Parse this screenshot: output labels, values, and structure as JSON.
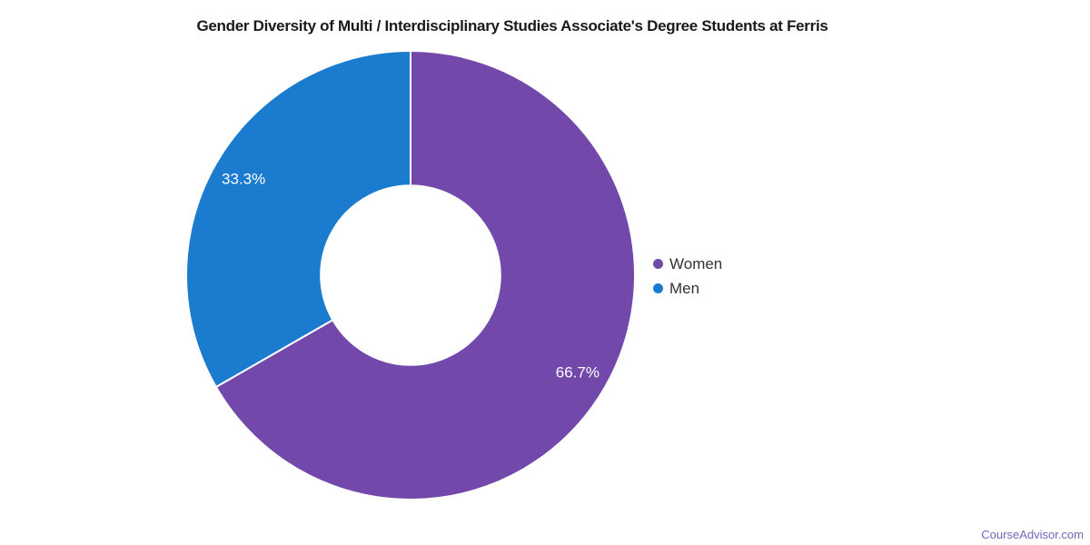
{
  "title": "Gender Diversity of Multi / Interdisciplinary Studies Associate's Degree Students at Ferris",
  "watermark": {
    "text": "CourseAdvisor.com"
  },
  "colors": {
    "women": "#7248ab",
    "men": "#1b7ccf",
    "title_text": "#1a1a1a",
    "legend_text": "#333333",
    "slice_label_text": "#ffffff",
    "slice_divider": "#ffffff",
    "watermark_text": "#7b63b8",
    "background": "#ffffff"
  },
  "legend": {
    "position": "right",
    "items": [
      {
        "label": "Women",
        "color": "#7248ab"
      },
      {
        "label": "Men",
        "color": "#1b7ccf"
      }
    ]
  },
  "chart_data": {
    "type": "pie",
    "subtype": "donut",
    "title": "Gender Diversity of Multi / Interdisciplinary Studies Associate's Degree Students at Ferris",
    "categories": [
      "Women",
      "Men"
    ],
    "values": [
      66.7,
      33.3
    ],
    "unit": "%",
    "value_labels": [
      "66.7%",
      "33.3%"
    ],
    "slice_colors": [
      "#7248ab",
      "#1b7ccf"
    ],
    "start_angle": "top",
    "direction": "clockwise",
    "donut_hole_ratio": 0.4,
    "label_radius_ratio": 0.86,
    "grid": false,
    "legend_position": "right"
  }
}
